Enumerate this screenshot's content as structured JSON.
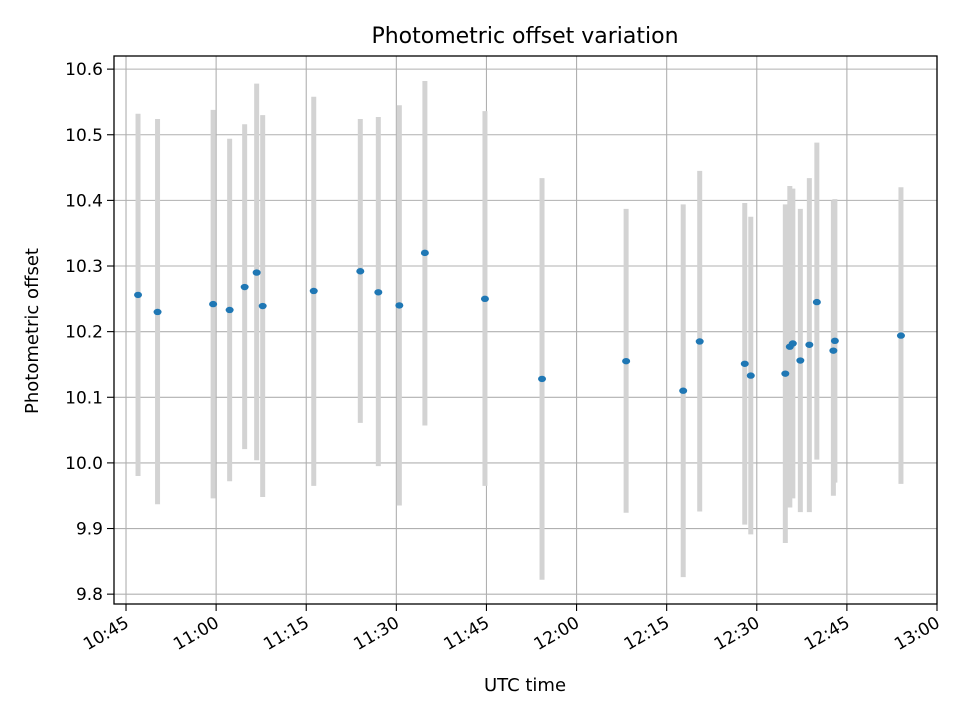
{
  "chart_data": {
    "type": "scatter",
    "title": "Photometric offset variation",
    "xlabel": "UTC time",
    "ylabel": "Photometric offset",
    "xlim": [
      "10:43",
      "13:00"
    ],
    "ylim": [
      9.785,
      10.62
    ],
    "xticks": [
      "10:45",
      "11:00",
      "11:15",
      "11:30",
      "11:45",
      "12:00",
      "12:15",
      "12:30",
      "12:45",
      "13:00"
    ],
    "yticks": [
      "9.8",
      "9.9",
      "10.0",
      "10.1",
      "10.2",
      "10.3",
      "10.4",
      "10.5",
      "10.6"
    ],
    "grid": true,
    "colors": {
      "point": "#1f77b4",
      "errorbar": "#d3d3d3",
      "grid": "#b0b0b0"
    },
    "points": [
      {
        "time": "10:47:00",
        "value": 10.256,
        "low": 9.98,
        "high": 10.532
      },
      {
        "time": "10:50:15",
        "value": 10.23,
        "low": 9.937,
        "high": 10.524
      },
      {
        "time": "10:59:30",
        "value": 10.242,
        "low": 9.946,
        "high": 10.538
      },
      {
        "time": "11:02:15",
        "value": 10.233,
        "low": 9.972,
        "high": 10.494
      },
      {
        "time": "11:04:45",
        "value": 10.268,
        "low": 10.021,
        "high": 10.516
      },
      {
        "time": "11:06:45",
        "value": 10.29,
        "low": 10.004,
        "high": 10.578
      },
      {
        "time": "11:07:45",
        "value": 10.239,
        "low": 9.948,
        "high": 10.53
      },
      {
        "time": "11:16:15",
        "value": 10.262,
        "low": 9.965,
        "high": 10.558
      },
      {
        "time": "11:24:00",
        "value": 10.292,
        "low": 10.061,
        "high": 10.524
      },
      {
        "time": "11:27:00",
        "value": 10.26,
        "low": 9.995,
        "high": 10.527
      },
      {
        "time": "11:30:30",
        "value": 10.24,
        "low": 9.935,
        "high": 10.545
      },
      {
        "time": "11:34:45",
        "value": 10.32,
        "low": 10.057,
        "high": 10.582
      },
      {
        "time": "11:44:45",
        "value": 10.25,
        "low": 9.965,
        "high": 10.536
      },
      {
        "time": "11:54:15",
        "value": 10.128,
        "low": 9.822,
        "high": 10.434
      },
      {
        "time": "12:08:15",
        "value": 10.155,
        "low": 9.924,
        "high": 10.387
      },
      {
        "time": "12:17:45",
        "value": 10.11,
        "low": 9.826,
        "high": 10.394
      },
      {
        "time": "12:20:30",
        "value": 10.185,
        "low": 9.926,
        "high": 10.445
      },
      {
        "time": "12:28:00",
        "value": 10.151,
        "low": 9.906,
        "high": 10.396
      },
      {
        "time": "12:29:00",
        "value": 10.133,
        "low": 9.891,
        "high": 10.375
      },
      {
        "time": "12:34:45",
        "value": 10.136,
        "low": 9.878,
        "high": 10.394
      },
      {
        "time": "12:35:30",
        "value": 10.177,
        "low": 9.932,
        "high": 10.422
      },
      {
        "time": "12:36:00",
        "value": 10.182,
        "low": 9.946,
        "high": 10.418
      },
      {
        "time": "12:37:15",
        "value": 10.156,
        "low": 9.925,
        "high": 10.387
      },
      {
        "time": "12:38:45",
        "value": 10.18,
        "low": 9.925,
        "high": 10.434
      },
      {
        "time": "12:40:00",
        "value": 10.245,
        "low": 10.005,
        "high": 10.488
      },
      {
        "time": "12:42:45",
        "value": 10.171,
        "low": 9.95,
        "high": 10.4
      },
      {
        "time": "12:43:00",
        "value": 10.186,
        "low": 9.97,
        "high": 10.402
      },
      {
        "time": "12:54:00",
        "value": 10.194,
        "low": 9.968,
        "high": 10.42
      }
    ]
  }
}
